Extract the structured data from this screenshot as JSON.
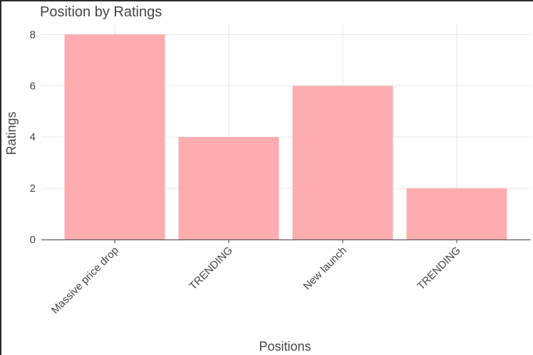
{
  "chart_data": {
    "type": "bar",
    "title": "Position by Ratings",
    "xlabel": "Positions",
    "ylabel": "Ratings",
    "categories": [
      "Massive price drop",
      "TRENDING",
      "New launch",
      "TRENDING"
    ],
    "values": [
      8,
      4,
      6,
      2
    ],
    "ylim": [
      0,
      8.4
    ],
    "yticks": [
      0,
      2,
      4,
      6,
      8
    ],
    "grid": true,
    "bar_color": "#ffadaf"
  }
}
